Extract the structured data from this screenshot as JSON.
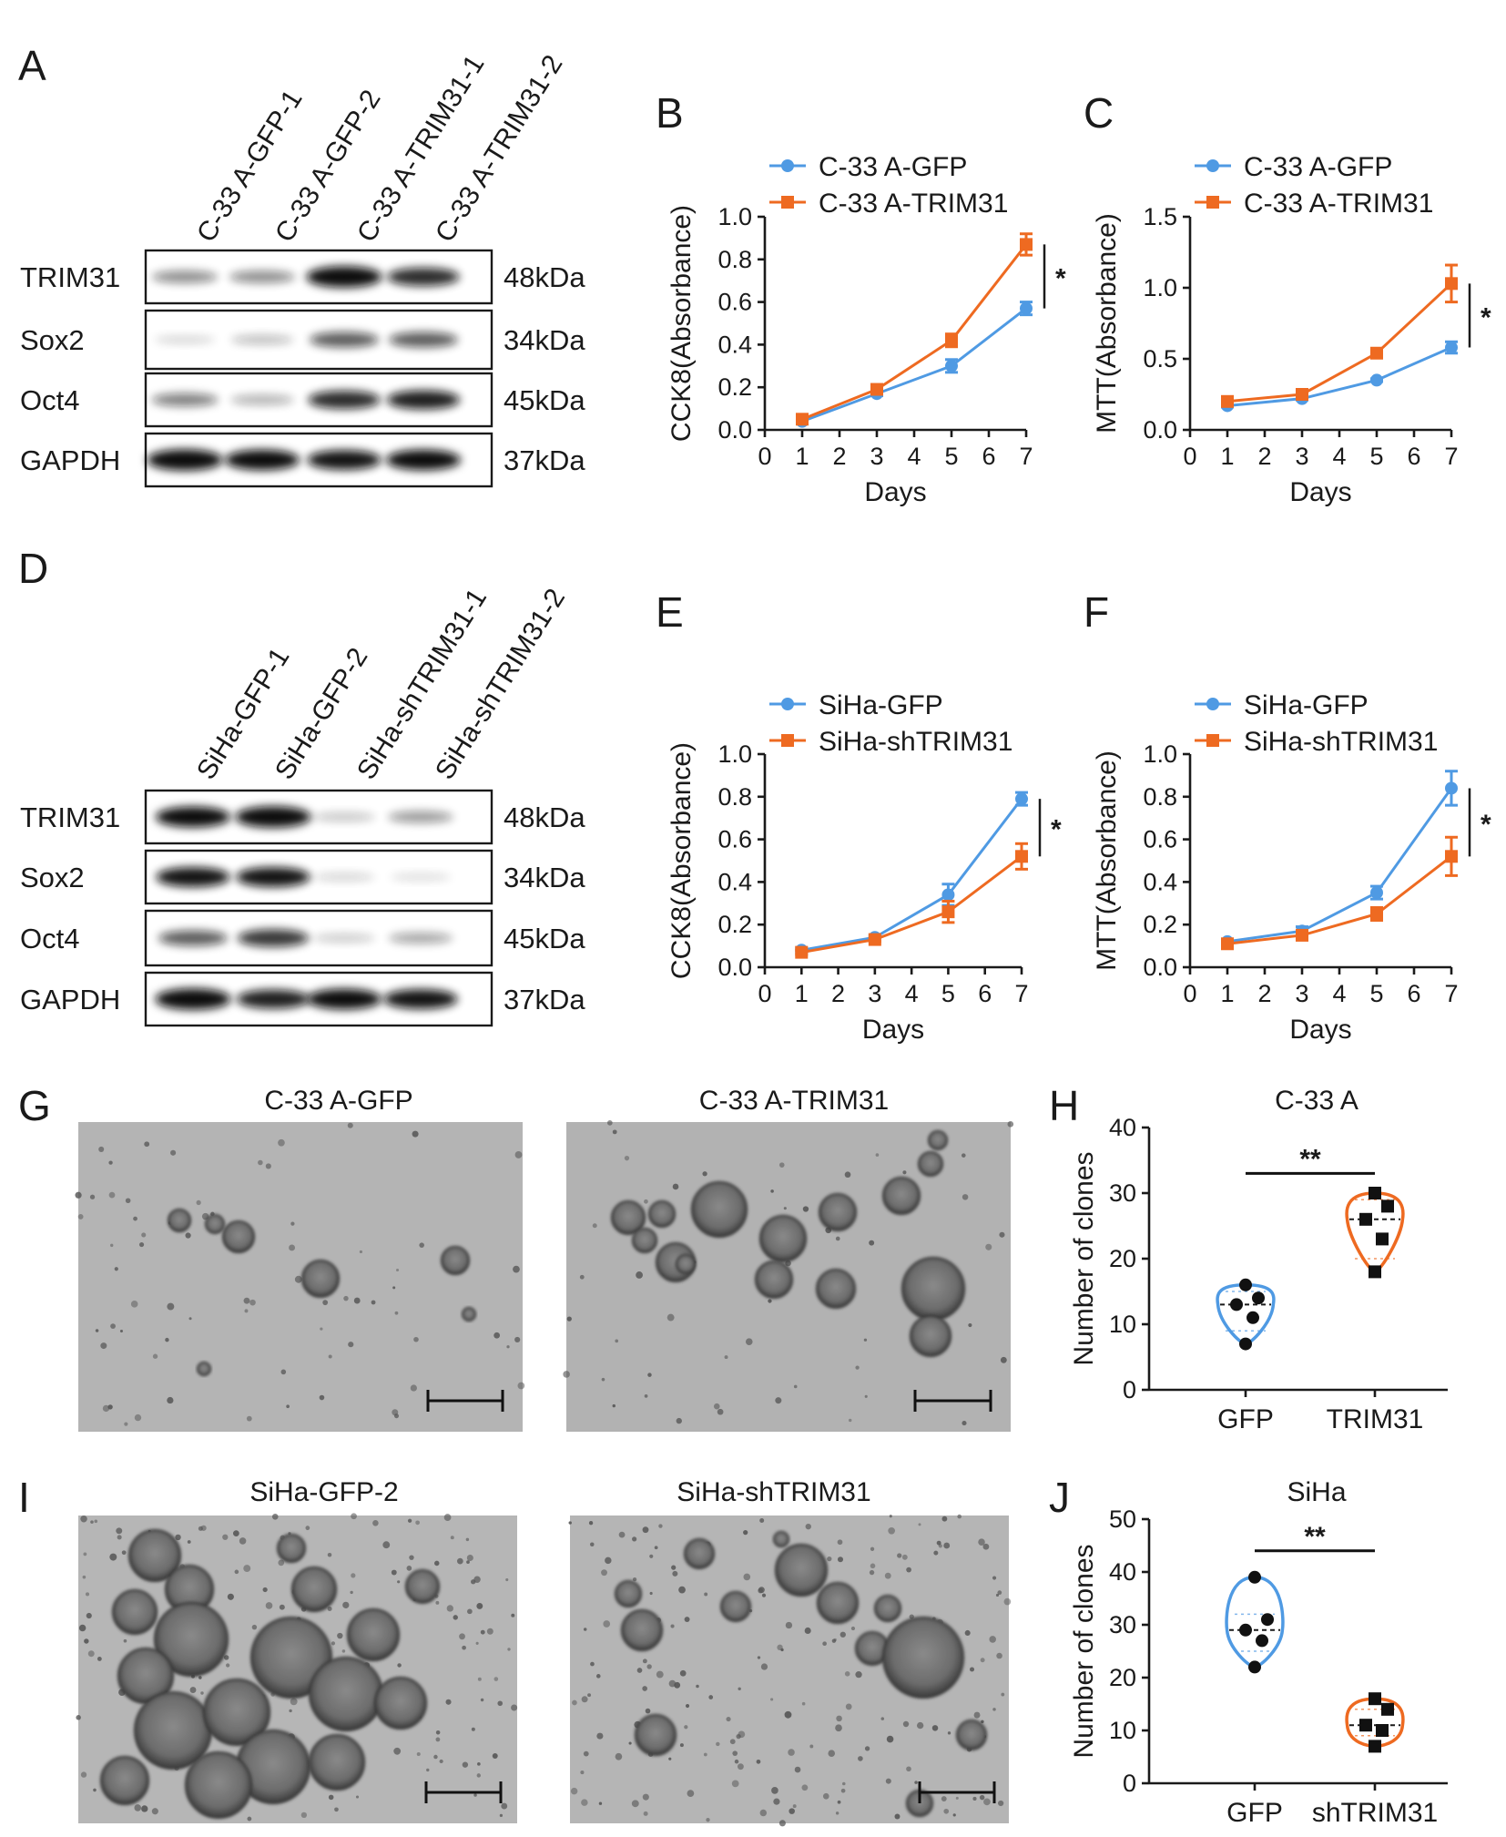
{
  "panel_labels": [
    "A",
    "B",
    "C",
    "D",
    "E",
    "F",
    "G",
    "H",
    "I",
    "J"
  ],
  "colors": {
    "gfp": "#4f9ae3",
    "trim": "#ee6a21",
    "band": "#111111"
  },
  "blots": [
    {
      "id": "A",
      "lanes": [
        "C-33 A-GFP-1",
        "C-33 A-GFP-2",
        "C-33 A-TRIM31-1",
        "C-33 A-TRIM31-2"
      ],
      "rows": [
        {
          "name": "TRIM31",
          "kda": "48kDa",
          "intensity": [
            0.35,
            0.35,
            0.95,
            0.75
          ]
        },
        {
          "name": "Sox2",
          "kda": "34kDa",
          "intensity": [
            0.05,
            0.15,
            0.55,
            0.55
          ]
        },
        {
          "name": "Oct4",
          "kda": "45kDa",
          "intensity": [
            0.4,
            0.2,
            0.75,
            0.8
          ]
        },
        {
          "name": "GAPDH",
          "kda": "37kDa",
          "intensity": [
            0.95,
            0.9,
            0.85,
            0.9
          ]
        }
      ]
    },
    {
      "id": "D",
      "lanes": [
        "SiHa-GFP-1",
        "SiHa-GFP-2",
        "SiHa-shTRIM31-1",
        "SiHa-shTRIM31-2"
      ],
      "rows": [
        {
          "name": "TRIM31",
          "kda": "48kDa",
          "intensity": [
            0.9,
            0.95,
            0.12,
            0.3
          ]
        },
        {
          "name": "Sox2",
          "kda": "34kDa",
          "intensity": [
            0.85,
            0.85,
            0.06,
            0.02
          ]
        },
        {
          "name": "Oct4",
          "kda": "45kDa",
          "intensity": [
            0.55,
            0.7,
            0.1,
            0.25
          ]
        },
        {
          "name": "GAPDH",
          "kda": "37kDa",
          "intensity": [
            0.95,
            0.8,
            0.9,
            0.85
          ]
        }
      ]
    }
  ],
  "chart_data": [
    {
      "id": "B",
      "type": "line",
      "xlabel": "Days",
      "ylabel": "CCK8(Absorbance)",
      "xlim": [
        0,
        7
      ],
      "ylim": [
        0,
        1.0
      ],
      "xticks": [
        "0",
        "1",
        "2",
        "3",
        "4",
        "5",
        "6",
        "7"
      ],
      "yticks": [
        "0.0",
        "0.2",
        "0.4",
        "0.6",
        "0.8",
        "1.0"
      ],
      "x": [
        1,
        3,
        5,
        7
      ],
      "series": [
        {
          "name": "C-33 A-GFP",
          "values": [
            0.04,
            0.17,
            0.3,
            0.57
          ],
          "errors": [
            0.01,
            0.01,
            0.03,
            0.03
          ]
        },
        {
          "name": "C-33 A-TRIM31",
          "values": [
            0.05,
            0.19,
            0.42,
            0.87
          ],
          "errors": [
            0.01,
            0.01,
            0.03,
            0.05
          ]
        }
      ],
      "significance": "*"
    },
    {
      "id": "C",
      "type": "line",
      "xlabel": "Days",
      "ylabel": "MTT(Absorbance)",
      "xlim": [
        0,
        7
      ],
      "ylim": [
        0,
        1.5
      ],
      "xticks": [
        "0",
        "1",
        "2",
        "3",
        "4",
        "5",
        "6",
        "7"
      ],
      "yticks": [
        "0.0",
        "0.5",
        "1.0",
        "1.5"
      ],
      "x": [
        1,
        3,
        5,
        7
      ],
      "series": [
        {
          "name": "C-33 A-GFP",
          "values": [
            0.17,
            0.22,
            0.35,
            0.58
          ],
          "errors": [
            0.01,
            0.01,
            0.01,
            0.04
          ]
        },
        {
          "name": "C-33 A-TRIM31",
          "values": [
            0.2,
            0.25,
            0.54,
            1.03
          ],
          "errors": [
            0.01,
            0.01,
            0.02,
            0.13
          ]
        }
      ],
      "significance": "*"
    },
    {
      "id": "E",
      "type": "line",
      "xlabel": "Days",
      "ylabel": "CCK8(Absorbance)",
      "xlim": [
        0,
        7
      ],
      "ylim": [
        0,
        1.0
      ],
      "xticks": [
        "0",
        "1",
        "2",
        "3",
        "4",
        "5",
        "6",
        "7"
      ],
      "yticks": [
        "0.0",
        "0.2",
        "0.4",
        "0.6",
        "0.8",
        "1.0"
      ],
      "x": [
        1,
        3,
        5,
        7
      ],
      "series": [
        {
          "name": "SiHa-GFP",
          "values": [
            0.08,
            0.14,
            0.34,
            0.79
          ],
          "errors": [
            0.01,
            0.01,
            0.05,
            0.03
          ]
        },
        {
          "name": "SiHa-shTRIM31",
          "values": [
            0.07,
            0.13,
            0.26,
            0.52
          ],
          "errors": [
            0.01,
            0.01,
            0.05,
            0.06
          ]
        }
      ],
      "significance": "*"
    },
    {
      "id": "F",
      "type": "line",
      "xlabel": "Days",
      "ylabel": "MTT(Absorbance)",
      "xlim": [
        0,
        7
      ],
      "ylim": [
        0,
        1.0
      ],
      "xticks": [
        "0",
        "1",
        "2",
        "3",
        "4",
        "5",
        "6",
        "7"
      ],
      "yticks": [
        "0.0",
        "0.2",
        "0.4",
        "0.6",
        "0.8",
        "1.0"
      ],
      "x": [
        1,
        3,
        5,
        7
      ],
      "series": [
        {
          "name": "SiHa-GFP",
          "values": [
            0.12,
            0.17,
            0.35,
            0.84
          ],
          "errors": [
            0.01,
            0.02,
            0.03,
            0.08
          ]
        },
        {
          "name": "SiHa-shTRIM31",
          "values": [
            0.11,
            0.15,
            0.25,
            0.52
          ],
          "errors": [
            0.01,
            0.01,
            0.03,
            0.09
          ]
        }
      ],
      "significance": "*"
    },
    {
      "id": "H",
      "type": "violin",
      "title": "C-33 A",
      "ylabel": "Number of clones",
      "ylim": [
        0,
        40
      ],
      "yticks": [
        "0",
        "10",
        "20",
        "30",
        "40"
      ],
      "categories": [
        "GFP",
        "TRIM31"
      ],
      "groups": [
        {
          "name": "GFP",
          "points": [
            16,
            14,
            13,
            11,
            7
          ],
          "median": 13,
          "q1": 9,
          "q3": 15,
          "min": 7,
          "max": 16
        },
        {
          "name": "TRIM31",
          "points": [
            30,
            28,
            26,
            23,
            18
          ],
          "median": 26,
          "q1": 20,
          "q3": 29,
          "min": 18,
          "max": 30
        }
      ],
      "significance": "**"
    },
    {
      "id": "J",
      "type": "violin",
      "title": "SiHa",
      "ylabel": "Number of clones",
      "ylim": [
        0,
        50
      ],
      "yticks": [
        "0",
        "10",
        "20",
        "30",
        "40",
        "50"
      ],
      "categories": [
        "GFP",
        "shTRIM31"
      ],
      "groups": [
        {
          "name": "GFP",
          "points": [
            39,
            31,
            29,
            27,
            22
          ],
          "median": 29,
          "q1": 25,
          "q3": 32,
          "min": 22,
          "max": 39
        },
        {
          "name": "shTRIM31",
          "points": [
            16,
            14,
            11,
            10,
            7
          ],
          "median": 11,
          "q1": 9,
          "q3": 14,
          "min": 7,
          "max": 16
        }
      ],
      "significance": "**"
    }
  ],
  "micrographs": [
    {
      "id": "G",
      "titles": [
        "C-33 A-GFP",
        "C-33 A-TRIM31"
      ]
    },
    {
      "id": "I",
      "titles": [
        "SiHa-GFP-2",
        "SiHa-shTRIM31"
      ]
    }
  ]
}
